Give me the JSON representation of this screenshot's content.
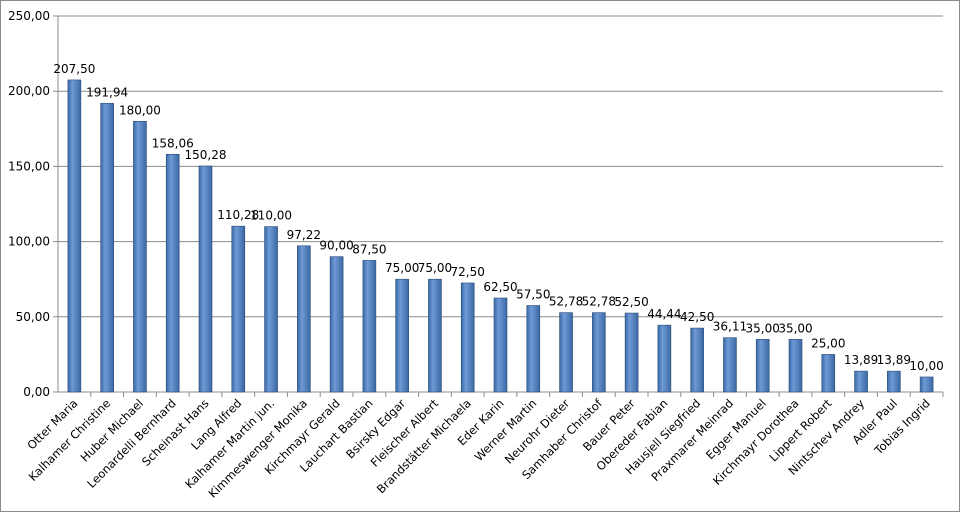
{
  "chart_data": {
    "type": "bar",
    "categories": [
      "Otter Maria",
      "Kalhamer Christine",
      "Huber Michael",
      "Leonardelli Bernhard",
      "Scheinast Hans",
      "Lang Alfred",
      "Kalhamer Martin jun.",
      "Kimmeswenger Monika",
      "Kirchmayr Gerald",
      "Lauchart Bastian",
      "Bsirsky Edgar",
      "Fleischer Albert",
      "Brandstätter Michaela",
      "Eder Karin",
      "Werner Martin",
      "Neurohr Dieter",
      "Samhaber Christof",
      "Bauer Peter",
      "Obereder Fabian",
      "Hausjell Siegfried",
      "Praxmarer Meinrad",
      "Egger Manuel",
      "Kirchmayr Dorothea",
      "Lippert Robert",
      "Nintschev Andrey",
      "Adler Paul",
      "Tobias Ingrid"
    ],
    "values": [
      207.5,
      191.94,
      180.0,
      158.06,
      150.28,
      110.28,
      110.0,
      97.22,
      90.0,
      87.5,
      75.0,
      75.0,
      72.5,
      62.5,
      57.5,
      52.78,
      52.78,
      52.5,
      44.44,
      42.5,
      36.11,
      35.0,
      35.0,
      25.0,
      13.89,
      13.89,
      10.0
    ],
    "data_labels": [
      "207,50",
      "191,94",
      "180,00",
      "158,06",
      "150,28",
      "110,28",
      "110,00",
      "97,22",
      "90,00",
      "87,50",
      "75,00",
      "75,00",
      "72,50",
      "62,50",
      "57,50",
      "52,78",
      "52,78",
      "52,50",
      "44,44",
      "42,50",
      "36,11",
      "35,00",
      "35,00",
      "25,00",
      "13,89",
      "13,89",
      "10,00"
    ],
    "y_ticks": [
      0,
      50,
      100,
      150,
      200,
      250
    ],
    "y_tick_labels": [
      "0,00",
      "50,00",
      "100,00",
      "150,00",
      "200,00",
      "250,00"
    ],
    "ylim": [
      0,
      250
    ],
    "title": "",
    "xlabel": "",
    "ylabel": "",
    "grid": "horizontal",
    "legend": "none",
    "colors": {
      "bar_fill": "#4f81bd",
      "bar_stroke": "#2c4d75",
      "gridline": "#8c8c8c",
      "axis": "#8c8c8c"
    }
  }
}
